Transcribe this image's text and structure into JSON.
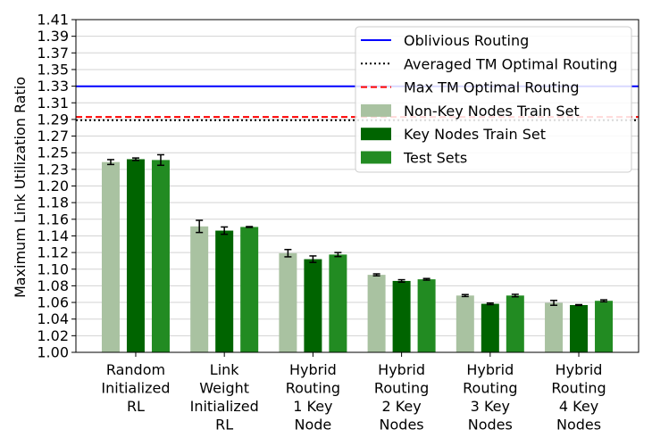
{
  "chart_data": {
    "type": "bar",
    "title": "",
    "xlabel": "",
    "ylabel": "Maximum Link Utilization Ratio",
    "ylim": [
      1.0,
      1.41
    ],
    "yticks": [
      "1.00",
      "1.02",
      "1.04",
      "1.06",
      "1.08",
      "1.10",
      "1.12",
      "1.14",
      "1.16",
      "1.18",
      "1.20",
      "1.23",
      "1.25",
      "1.27",
      "1.29",
      "1.31",
      "1.33",
      "1.35",
      "1.37",
      "1.39",
      "1.41"
    ],
    "grid": "horizontal",
    "legend_position": "top-right",
    "categories": [
      "Random\nInitialized\nRL",
      "Link\nWeight\nInitialized\nRL",
      "Hybrid\nRouting\n1 Key\nNode",
      "Hybrid\nRouting\n2 Key\nNodes",
      "Hybrid\nRouting\n3 Key\nNodes",
      "Hybrid\nRouting\n4 Key\nNodes"
    ],
    "series": [
      {
        "name": "Non-Key Nodes Train Set",
        "color": "#a9c2a1",
        "values": [
          1.2345,
          1.1552,
          1.1222,
          1.0955,
          1.07,
          1.061
        ],
        "errors": [
          0.003,
          0.0075,
          0.0045,
          0.0012,
          0.0012,
          0.003
        ]
      },
      {
        "name": "Key Nodes Train Set",
        "color": "#006400",
        "values": [
          1.238,
          1.15,
          1.1148,
          1.088,
          1.0598,
          1.0583
        ],
        "errors": [
          0.0015,
          0.0045,
          0.004,
          0.0015,
          0.001,
          0.0005
        ]
      },
      {
        "name": "Test Sets",
        "color": "#228b22",
        "values": [
          1.237,
          1.1545,
          1.1205,
          1.09,
          1.07,
          1.0635
        ],
        "errors": [
          0.0065,
          0.0005,
          0.0025,
          0.001,
          0.0015,
          0.0012
        ]
      }
    ],
    "reference_lines": [
      {
        "name": "Oblivious Routing",
        "value": 1.3278,
        "color": "#0000ff",
        "style": "solid"
      },
      {
        "name": "Averaged TM Optimal Routing",
        "value": 1.286,
        "color": "#000000",
        "style": "dotted"
      },
      {
        "name": "Max TM Optimal Routing",
        "value": 1.29,
        "color": "#ff0000",
        "style": "dashed"
      }
    ]
  }
}
